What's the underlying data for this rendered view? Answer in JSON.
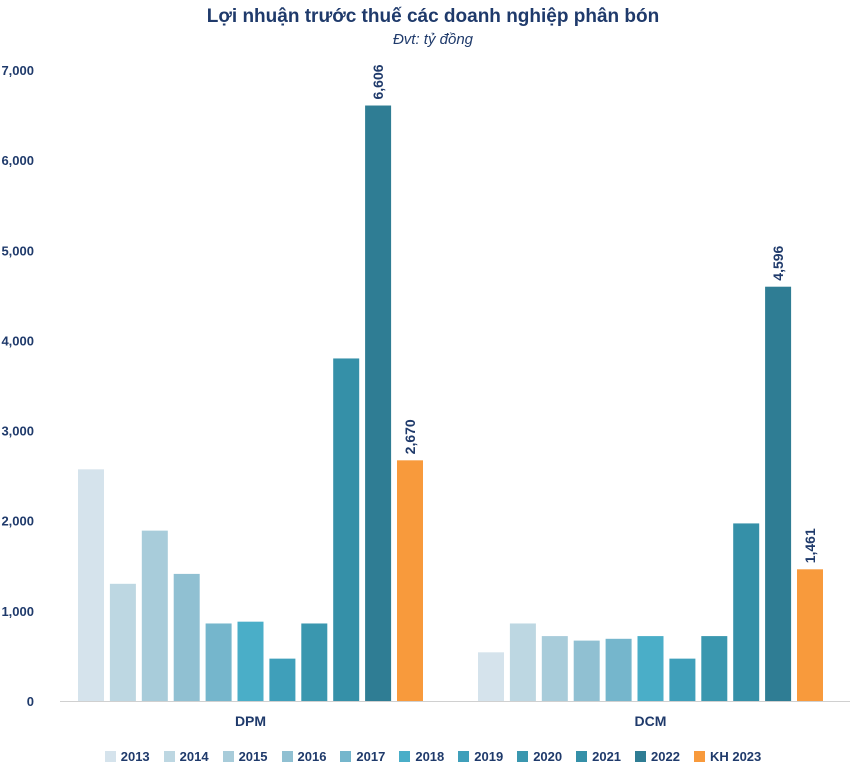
{
  "chart_data": {
    "type": "bar",
    "title": "Lợi nhuận trước thuế các doanh nghiệp phân bón",
    "subtitle": "Đvt: tỷ đồng",
    "categories": [
      "DPM",
      "DCM"
    ],
    "ylim": [
      0,
      7000
    ],
    "yticks": [
      "0",
      "1,000",
      "2,000",
      "3,000",
      "4,000",
      "5,000",
      "6,000",
      "7,000"
    ],
    "grid": false,
    "legend_position": "bottom",
    "series": [
      {
        "name": "2013",
        "color": "#d5e3ec",
        "values": [
          2570,
          540
        ]
      },
      {
        "name": "2014",
        "color": "#bdd7e2",
        "values": [
          1300,
          860
        ]
      },
      {
        "name": "2015",
        "color": "#a8ccda",
        "values": [
          1890,
          720
        ]
      },
      {
        "name": "2016",
        "color": "#90c0d2",
        "values": [
          1410,
          670
        ]
      },
      {
        "name": "2017",
        "color": "#75b6cc",
        "values": [
          860,
          690
        ]
      },
      {
        "name": "2018",
        "color": "#4aaec8",
        "values": [
          880,
          720
        ]
      },
      {
        "name": "2019",
        "color": "#3f9fba",
        "values": [
          470,
          470
        ]
      },
      {
        "name": "2020",
        "color": "#3a97af",
        "values": [
          860,
          720
        ]
      },
      {
        "name": "2021",
        "color": "#3590a8",
        "values": [
          3800,
          1970
        ]
      },
      {
        "name": "2022",
        "color": "#2f7d94",
        "values": [
          6606,
          4596
        ]
      },
      {
        "name": "KH 2023",
        "color": "#f89a3c",
        "values": [
          2670,
          1461
        ]
      }
    ],
    "data_labels": [
      {
        "series": "2022",
        "category": "DPM",
        "text": "6,606"
      },
      {
        "series": "KH 2023",
        "category": "DPM",
        "text": "2,670"
      },
      {
        "series": "2022",
        "category": "DCM",
        "text": "4,596"
      },
      {
        "series": "KH 2023",
        "category": "DCM",
        "text": "1,461"
      }
    ]
  }
}
